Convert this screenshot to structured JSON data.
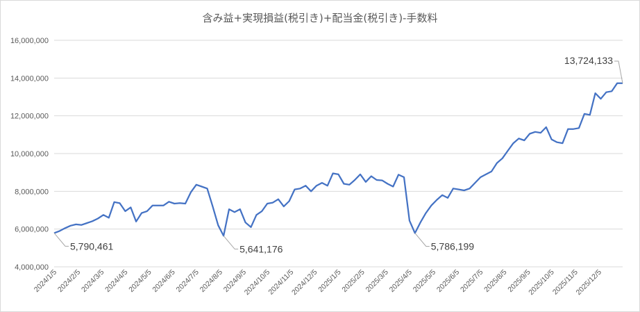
{
  "chart_data": {
    "type": "line",
    "title": "含み益+実現損益(税引き)+配当金(税引き)-手数料",
    "xlabel": "",
    "ylabel": "",
    "ylim": [
      4000000,
      16000000
    ],
    "yticks": [
      4000000,
      6000000,
      8000000,
      10000000,
      12000000,
      14000000,
      16000000
    ],
    "ytick_labels": [
      "4,000,000",
      "6,000,000",
      "8,000,000",
      "10,000,000",
      "12,000,000",
      "14,000,000",
      "16,000,000"
    ],
    "xtick_labels": [
      "2024/1/5",
      "2024/2/5",
      "2024/3/5",
      "2024/4/5",
      "2024/5/5",
      "2024/6/5",
      "2024/7/5",
      "2024/8/5",
      "2024/9/5",
      "2024/10/5",
      "2024/11/5",
      "2024/12/5",
      "2025/1/5",
      "2025/2/5",
      "2025/3/5",
      "2025/4/5",
      "2025/5/5",
      "2025/6/5",
      "2025/7/5",
      "2025/8/5",
      "2025/9/5",
      "2025/10/5",
      "2025/11/5",
      "2025/12/5"
    ],
    "grid": "horizontal",
    "legend": "none",
    "color": "#4472c4",
    "values": [
      5790461,
      5900000,
      6050000,
      6180000,
      6250000,
      6220000,
      6320000,
      6420000,
      6560000,
      6750000,
      6600000,
      7430000,
      7370000,
      6950000,
      7150000,
      6400000,
      6850000,
      6950000,
      7250000,
      7250000,
      7250000,
      7450000,
      7350000,
      7380000,
      7350000,
      7950000,
      8350000,
      8250000,
      8150000,
      7200000,
      6200000,
      5641176,
      7050000,
      6900000,
      7050000,
      6350000,
      6100000,
      6750000,
      6950000,
      7350000,
      7400000,
      7580000,
      7200000,
      7480000,
      8100000,
      8150000,
      8300000,
      8000000,
      8300000,
      8450000,
      8300000,
      8950000,
      8900000,
      8400000,
      8350000,
      8600000,
      8900000,
      8500000,
      8800000,
      8600000,
      8580000,
      8400000,
      8250000,
      8880000,
      8750000,
      6450000,
      5786199,
      6350000,
      6850000,
      7250000,
      7550000,
      7800000,
      7650000,
      8150000,
      8100000,
      8050000,
      8150000,
      8450000,
      8750000,
      8900000,
      9050000,
      9500000,
      9750000,
      10150000,
      10550000,
      10800000,
      10700000,
      11050000,
      11150000,
      11100000,
      11400000,
      10750000,
      10600000,
      10550000,
      11300000,
      11300000,
      11350000,
      12100000,
      12050000,
      13200000,
      12900000,
      13250000,
      13300000,
      13724133,
      13724133
    ],
    "annotations": [
      {
        "label": "5,790,461",
        "index": 0
      },
      {
        "label": "5,641,176",
        "index": 31
      },
      {
        "label": "5,786,199",
        "index": 66
      },
      {
        "label": "13,724,133",
        "index": 104
      }
    ]
  }
}
